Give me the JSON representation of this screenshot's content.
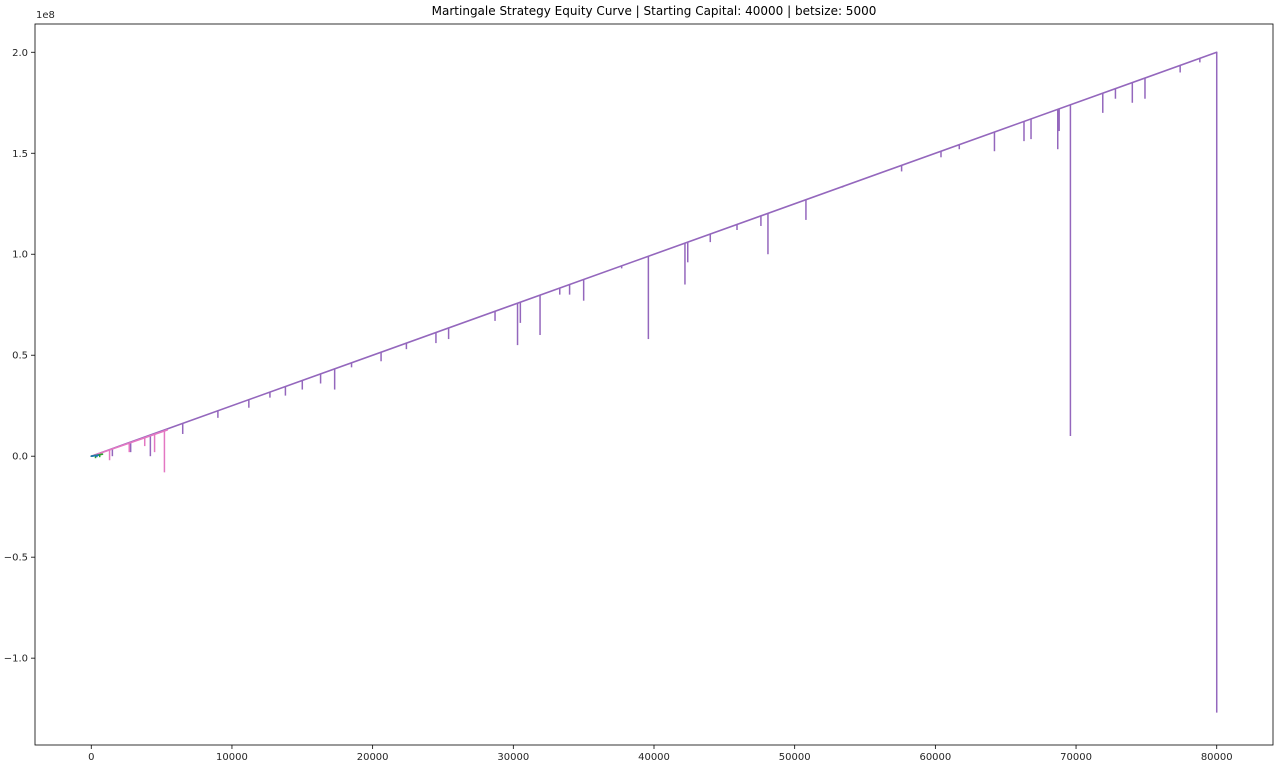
{
  "chart_data": {
    "type": "line",
    "title": "Martingale Strategy Equity Curve | Starting Capital: 40000 | betsize: 5000",
    "xlabel": "",
    "ylabel": "",
    "y_offset_label": "1e8",
    "xlim": [
      -4000,
      84000
    ],
    "ylim": [
      -1.43,
      2.14
    ],
    "x_ticks": [
      0,
      10000,
      20000,
      30000,
      40000,
      50000,
      60000,
      70000,
      80000
    ],
    "x_tick_labels": [
      "0",
      "10000",
      "20000",
      "30000",
      "40000",
      "50000",
      "60000",
      "70000",
      "80000"
    ],
    "y_ticks": [
      -1.0,
      -0.5,
      0.0,
      0.5,
      1.0,
      1.5,
      2.0
    ],
    "y_tick_labels": [
      "−1.0",
      "−0.5",
      "0.0",
      "0.5",
      "1.0",
      "1.5",
      "2.0"
    ],
    "grid": false,
    "legend": "none",
    "series": [
      {
        "color": "#9467bd",
        "trend": [
          [
            0,
            0.0
          ],
          [
            80000,
            2.0
          ]
        ],
        "end_drop": [
          80000,
          -1.27
        ],
        "dips": [
          [
            1500,
            0.0
          ],
          [
            2800,
            0.02
          ],
          [
            4200,
            0.0
          ],
          [
            6500,
            0.11
          ],
          [
            9000,
            0.19
          ],
          [
            11200,
            0.24
          ],
          [
            12700,
            0.29
          ],
          [
            13800,
            0.3
          ],
          [
            15000,
            0.33
          ],
          [
            16300,
            0.36
          ],
          [
            17300,
            0.33
          ],
          [
            18500,
            0.44
          ],
          [
            20600,
            0.47
          ],
          [
            22400,
            0.53
          ],
          [
            24500,
            0.56
          ],
          [
            25400,
            0.58
          ],
          [
            28700,
            0.67
          ],
          [
            30300,
            0.55
          ],
          [
            30500,
            0.66
          ],
          [
            31900,
            0.6
          ],
          [
            33300,
            0.8
          ],
          [
            34000,
            0.8
          ],
          [
            35000,
            0.77
          ],
          [
            37700,
            0.93
          ],
          [
            39600,
            0.58
          ],
          [
            42200,
            0.85
          ],
          [
            42400,
            0.96
          ],
          [
            44000,
            1.06
          ],
          [
            45900,
            1.12
          ],
          [
            47600,
            1.14
          ],
          [
            48100,
            1.0
          ],
          [
            50800,
            1.17
          ],
          [
            53400,
            1.33
          ],
          [
            57600,
            1.41
          ],
          [
            60400,
            1.48
          ],
          [
            61700,
            1.52
          ],
          [
            64200,
            1.51
          ],
          [
            66300,
            1.56
          ],
          [
            66800,
            1.57
          ],
          [
            68700,
            1.52
          ],
          [
            68800,
            1.61
          ],
          [
            69600,
            0.1
          ],
          [
            71900,
            1.7
          ],
          [
            72800,
            1.77
          ],
          [
            74000,
            1.75
          ],
          [
            74900,
            1.77
          ],
          [
            77400,
            1.9
          ],
          [
            78800,
            1.95
          ]
        ]
      },
      {
        "color": "#e377c2",
        "trend": [
          [
            0,
            0.0
          ],
          [
            5400,
            0.13
          ]
        ],
        "dips": [
          [
            1300,
            -0.02
          ],
          [
            2700,
            0.02
          ],
          [
            3800,
            0.05
          ],
          [
            4500,
            0.02
          ],
          [
            5200,
            -0.08
          ]
        ]
      },
      {
        "color": "#2ca02c",
        "trend": [
          [
            0,
            0.0
          ],
          [
            800,
            0.01
          ]
        ],
        "dips": [
          [
            300,
            -0.01
          ],
          [
            600,
            -0.005
          ]
        ]
      },
      {
        "color": "#1f77b4",
        "trend": [
          [
            0,
            0.0
          ],
          [
            500,
            0.005
          ]
        ],
        "dips": [
          [
            400,
            -0.005
          ]
        ]
      }
    ]
  }
}
